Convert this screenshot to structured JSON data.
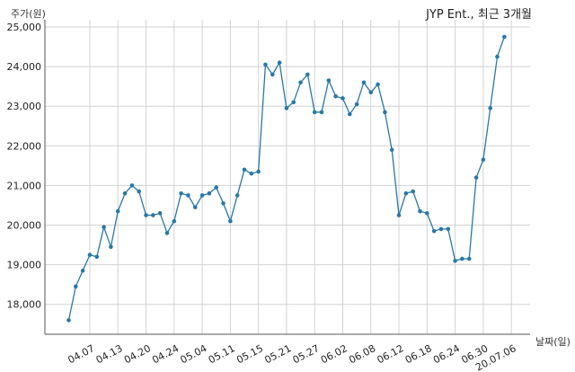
{
  "chart_data": {
    "type": "line",
    "title": "JYP Ent., 최근 3개월",
    "xlabel": "날짜(일)",
    "ylabel": "주가(원)",
    "ylim": [
      17250,
      25000
    ],
    "yticks": [
      18000,
      19000,
      20000,
      21000,
      22000,
      23000,
      24000,
      25000
    ],
    "ytick_labels": [
      "18,000",
      "19,000",
      "20,000",
      "21,000",
      "22,000",
      "23,000",
      "24,000",
      "25,000"
    ],
    "xtick_labels": [
      "04.07",
      "04.13",
      "04.20",
      "04.24",
      "05.04",
      "05.11",
      "05.15",
      "05.21",
      "05.27",
      "06.02",
      "06.08",
      "06.12",
      "06.18",
      "06.24",
      "06.30",
      "20.07.06"
    ],
    "xtick_index": [
      3,
      7,
      11,
      15,
      19,
      23,
      27,
      31,
      35,
      39,
      43,
      47,
      51,
      55,
      59,
      63
    ],
    "grid": true,
    "color": "#2878a8",
    "values": [
      17600,
      18450,
      18850,
      19250,
      19200,
      19950,
      19450,
      20350,
      20800,
      21000,
      20850,
      20250,
      20250,
      20300,
      19800,
      20100,
      20800,
      20750,
      20450,
      20750,
      20800,
      20950,
      20550,
      20100,
      20750,
      21400,
      21300,
      21350,
      24050,
      23800,
      24100,
      22950,
      23100,
      23600,
      23800,
      22850,
      22850,
      23650,
      23250,
      23200,
      22800,
      23050,
      23600,
      23350,
      23550,
      22850,
      21900,
      20250,
      20800,
      20850,
      20350,
      20300,
      19850,
      19900,
      19900,
      19100,
      19150,
      19150,
      21200,
      21650,
      22950,
      24250,
      24750
    ]
  }
}
